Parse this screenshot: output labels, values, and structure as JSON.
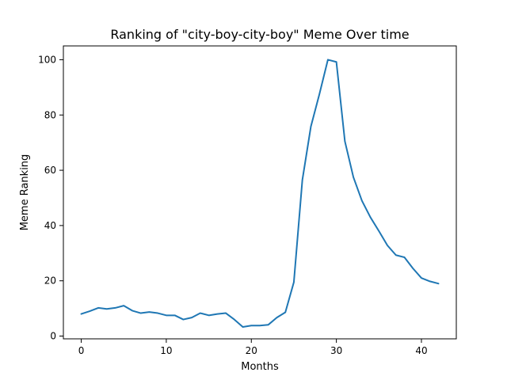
{
  "chart_data": {
    "type": "line",
    "title": "Ranking of \"city-boy-city-boy\" Meme Over time",
    "xlabel": "Months",
    "ylabel": "Meme Ranking",
    "xlim": [
      -2.1,
      44.1
    ],
    "ylim": [
      -1.0,
      105.0
    ],
    "xticks": [
      0,
      10,
      20,
      30,
      40
    ],
    "yticks": [
      0,
      20,
      40,
      60,
      80,
      100
    ],
    "grid": false,
    "legend": "none",
    "series": [
      {
        "color": "#1f77b4",
        "x": [
          0,
          1,
          2,
          3,
          4,
          5,
          6,
          7,
          8,
          9,
          10,
          11,
          12,
          13,
          14,
          15,
          16,
          17,
          18,
          19,
          20,
          21,
          22,
          23,
          24,
          25,
          26,
          27,
          28,
          29,
          30,
          31,
          32,
          33,
          34,
          35,
          36,
          37,
          38,
          39,
          40,
          41,
          42
        ],
        "y": [
          8,
          9,
          10.2,
          9.8,
          10.2,
          11,
          9.2,
          8.3,
          8.7,
          8.3,
          7.5,
          7.5,
          6,
          6.7,
          8.3,
          7.5,
          8,
          8.3,
          6,
          3.3,
          3.8,
          3.8,
          4.1,
          6.7,
          8.6,
          19.5,
          56.5,
          75.8,
          87.5,
          100,
          99.2,
          70.5,
          57.5,
          49,
          43,
          38,
          32.8,
          29.3,
          28.5,
          24.5,
          21,
          19.8,
          19
        ]
      }
    ]
  }
}
